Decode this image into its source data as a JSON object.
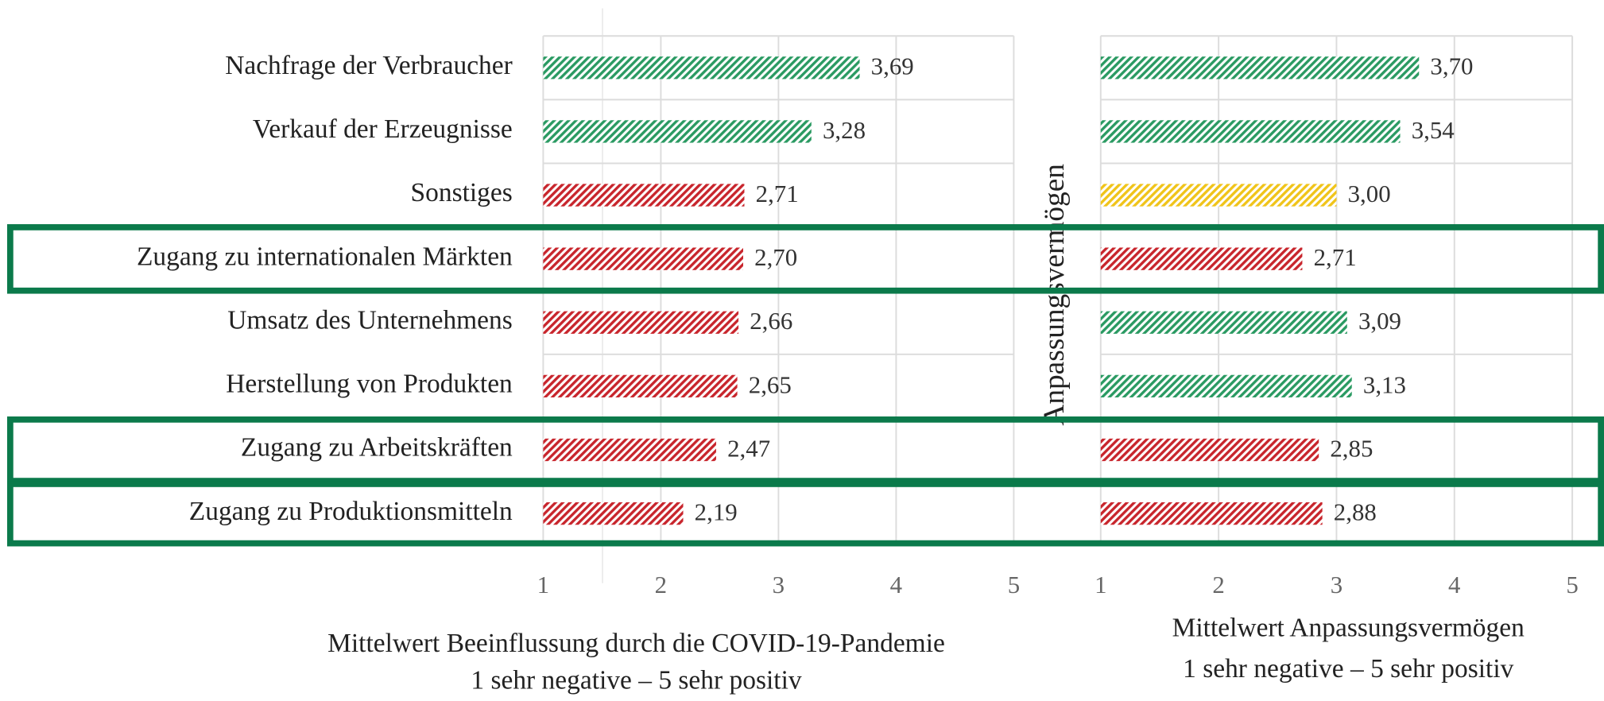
{
  "chart_data": [
    {
      "type": "barh",
      "categories": [
        "Nachfrage der Verbraucher",
        "Verkauf der Erzeugnisse",
        "Sonstiges",
        "Zugang zu internationalen Märkten",
        "Umsatz des Unternehmens",
        "Herstellung von Produkten",
        "Zugang zu Arbeitskräften",
        "Zugang zu Produktionsmitteln"
      ],
      "values": [
        3.69,
        3.28,
        2.71,
        2.7,
        2.66,
        2.65,
        2.47,
        2.19
      ],
      "value_labels": [
        "3,69",
        "3,28",
        "2,71",
        "2,70",
        "2,66",
        "2,65",
        "2,47",
        "2,19"
      ],
      "colors": [
        "#2a9a62",
        "#2a9a62",
        "#c8252c",
        "#c8252c",
        "#c8252c",
        "#c8252c",
        "#c8252c",
        "#c8252c"
      ],
      "xlim": [
        1,
        5
      ],
      "xticks": [
        1,
        2,
        3,
        4,
        5
      ],
      "grid": true,
      "xlabel": [
        "Mittelwert Beeinflussung durch die COVID-19-Pandemie",
        "1 sehr negative – 5 sehr positiv"
      ]
    },
    {
      "type": "barh",
      "ylabel": "Anpassungsvermögen",
      "values": [
        3.7,
        3.54,
        3.0,
        2.71,
        3.09,
        3.13,
        2.85,
        2.88
      ],
      "value_labels": [
        "3,70",
        "3,54",
        "3,00",
        "2,71",
        "3,09",
        "3,13",
        "2,85",
        "2,88"
      ],
      "colors": [
        "#2a9a62",
        "#2a9a62",
        "#f0c419",
        "#c8252c",
        "#2a9a62",
        "#2a9a62",
        "#c8252c",
        "#c8252c"
      ],
      "xlim": [
        1,
        5
      ],
      "xticks": [
        1,
        2,
        3,
        4,
        5
      ],
      "grid": true,
      "xlabel": [
        "Mittelwert Anpassungsvermögen",
        "1 sehr negative – 5 sehr positiv"
      ]
    }
  ]
}
